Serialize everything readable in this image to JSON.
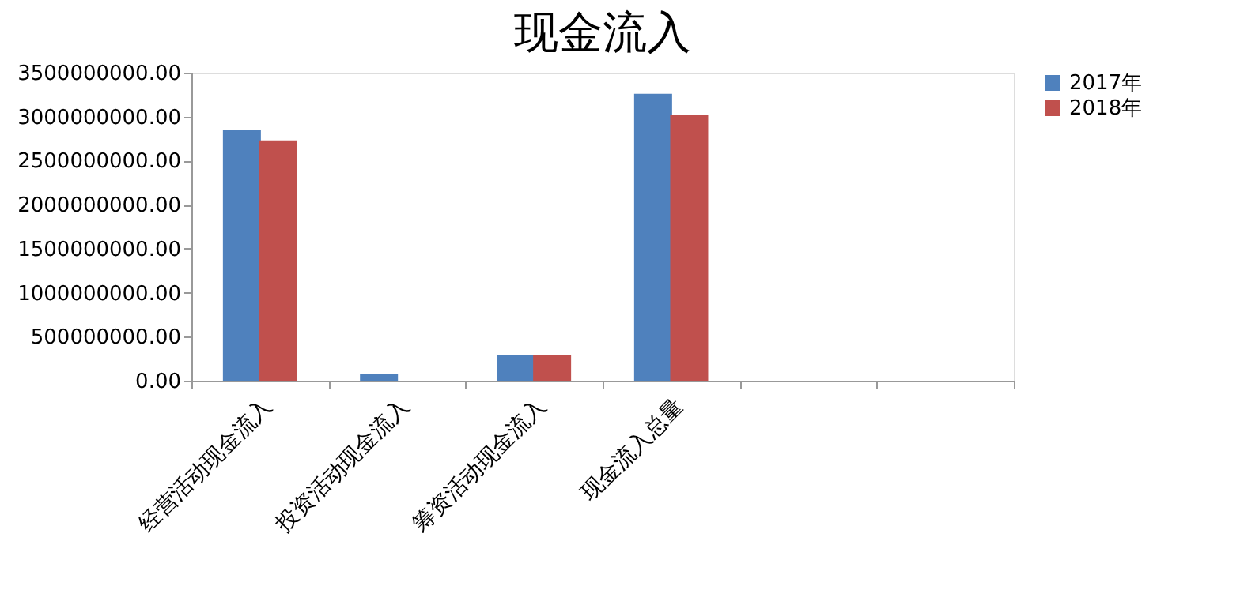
{
  "chart_data": {
    "type": "bar",
    "title": "现金流入",
    "categories": [
      "经营活动现金流入",
      "投资活动现金流入",
      "筹资活动现金流入",
      "现金流入总量",
      null,
      null
    ],
    "series": [
      {
        "name": "2017年",
        "color": "#4f81bd",
        "values": [
          2850000000,
          80000000,
          290000000,
          3260000000,
          null,
          null
        ]
      },
      {
        "name": "2018年",
        "color": "#c0504d",
        "values": [
          2730000000,
          0,
          290000000,
          3020000000,
          null,
          null
        ]
      }
    ],
    "ylim": [
      0,
      3500000000
    ],
    "yticks": [
      {
        "value": 0,
        "label": "0.00"
      },
      {
        "value": 500000000,
        "label": "500000000.00"
      },
      {
        "value": 1000000000,
        "label": "1000000000.00"
      },
      {
        "value": 1500000000,
        "label": "1500000000.00"
      },
      {
        "value": 2000000000,
        "label": "2000000000.00"
      },
      {
        "value": 2500000000,
        "label": "2500000000.00"
      },
      {
        "value": 3000000000,
        "label": "3000000000.00"
      },
      {
        "value": 3500000000,
        "label": "3500000000.00"
      }
    ],
    "grid": false,
    "legend": "right"
  }
}
